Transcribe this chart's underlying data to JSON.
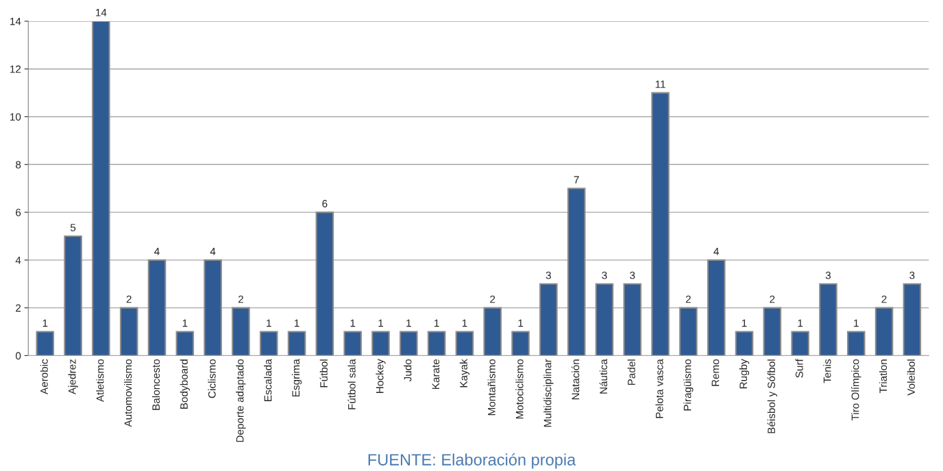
{
  "chart_data": {
    "type": "bar",
    "categories": [
      "Aerobic",
      "Ajedrez",
      "Atletismo",
      "Automovilismo",
      "Baloncesto",
      "Bodyboard",
      "Ciclismo",
      "Deporte adaptado",
      "Escalada",
      "Esgrima",
      "Fútbol",
      "Fútbol sala",
      "Hockey",
      "Judo",
      "Karate",
      "Kayak",
      "Montañismo",
      "Motociclismo",
      "Multidisciplinar",
      "Natación",
      "Náutica",
      "Padel",
      "Pelota vasca",
      "Piragüismo",
      "Remo",
      "Rugby",
      "Béisbol y Sófbol",
      "Surf",
      "Tenis",
      "Tiro Olímpico",
      "Triatlon",
      "Voleibol"
    ],
    "values": [
      1,
      5,
      14,
      2,
      4,
      1,
      4,
      2,
      1,
      1,
      6,
      1,
      1,
      1,
      1,
      1,
      2,
      1,
      3,
      7,
      3,
      3,
      11,
      2,
      4,
      1,
      2,
      1,
      3,
      1,
      2,
      3
    ],
    "color": "#2f5b95",
    "ylim": [
      0,
      14
    ],
    "yticks": [
      0,
      2,
      4,
      6,
      8,
      10,
      12,
      14
    ],
    "grid": "y",
    "data_labels": true,
    "legend": false,
    "annotations": [
      "FUENTE: Elaboración propia"
    ]
  }
}
